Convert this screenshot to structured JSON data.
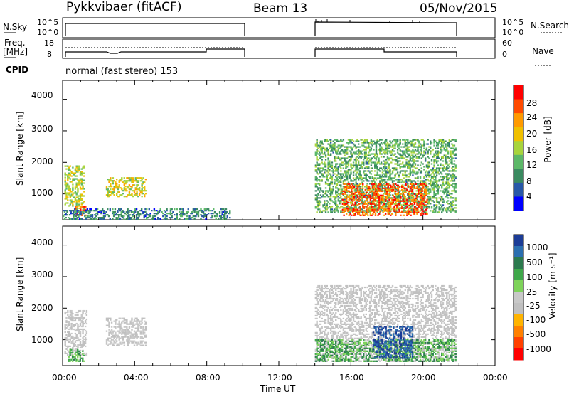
{
  "header": {
    "radar": "Pykkvibaer (fitACF)",
    "beam": "Beam 13",
    "date": "05/Nov/2015"
  },
  "strips": {
    "nsky_label": "N.Sky",
    "nsky_ticks": [
      "10^5",
      "10^0"
    ],
    "nsearch_label": "N.Search",
    "nsearch_ticks": [
      "10^5",
      "10^0"
    ],
    "freq_label": [
      "Freq.",
      "[MHz]"
    ],
    "freq_ticks": [
      "18",
      "8"
    ],
    "nave_label": "Nave",
    "nave_ticks": [
      "60",
      "0"
    ],
    "cpid_label": "CPID",
    "cpid_text": "normal (fast stereo) 153"
  },
  "axes": {
    "xlabel": "Time UT",
    "x_ticks": [
      "00:00",
      "04:00",
      "08:00",
      "12:00",
      "16:00",
      "20:00",
      "00:00"
    ],
    "ylabel": "Slant Range [km]",
    "y_ticks": [
      "4000",
      "3000",
      "2000",
      "1000"
    ]
  },
  "power_scale": {
    "label": "Power [dB]",
    "ticks": [
      "28",
      "24",
      "20",
      "16",
      "12",
      "8",
      "4"
    ],
    "colors": [
      "#ff0000",
      "#ff4a00",
      "#ff9a00",
      "#f0c000",
      "#a8d43c",
      "#5cb868",
      "#3a8a60",
      "#2858a8",
      "#0000ff"
    ]
  },
  "velocity_scale": {
    "label": "Velocity [m s⁻¹]",
    "ticks": [
      "1000",
      "500",
      "100",
      "25",
      "-25",
      "-100",
      "-500",
      "-1000"
    ],
    "colors": [
      "#1c3c96",
      "#2b6fb0",
      "#2c7a4e",
      "#3fa84a",
      "#7ed35a",
      "#c8c8c8",
      "#c0c0c0",
      "#ffb400",
      "#ff8000",
      "#ff4000",
      "#ff0000"
    ]
  },
  "chart_data": [
    {
      "type": "heatmap",
      "title": "Power",
      "xlabel": "Time UT",
      "ylabel": "Slant Range [km]",
      "x_range_hours": [
        0,
        24
      ],
      "ylim": [
        180,
        4600
      ],
      "colorbar": {
        "label": "Power [dB]",
        "ticks": [
          4,
          8,
          12,
          16,
          20,
          24,
          28
        ]
      },
      "regions": [
        {
          "t_start": 0.1,
          "t_end": 1.2,
          "range_lo": 600,
          "range_hi": 1900,
          "power_db": 16
        },
        {
          "t_start": 0.6,
          "t_end": 1.3,
          "range_lo": 300,
          "range_hi": 600,
          "power_db": 26
        },
        {
          "t_start": 2.4,
          "t_end": 4.6,
          "range_lo": 900,
          "range_hi": 1500,
          "power_db": 18
        },
        {
          "t_start": 0.0,
          "t_end": 9.3,
          "range_lo": 180,
          "range_hi": 500,
          "power_db": 8
        },
        {
          "t_start": 14.0,
          "t_end": 21.8,
          "range_lo": 400,
          "range_hi": 2700,
          "power_db": 12
        },
        {
          "t_start": 15.5,
          "t_end": 20.2,
          "range_lo": 300,
          "range_hi": 1300,
          "power_db": 26
        }
      ]
    },
    {
      "type": "heatmap",
      "title": "Velocity",
      "xlabel": "Time UT",
      "ylabel": "Slant Range [km]",
      "x_range_hours": [
        0,
        24
      ],
      "ylim": [
        180,
        4600
      ],
      "colorbar": {
        "label": "Velocity [m s⁻¹]",
        "ticks": [
          1000,
          500,
          100,
          25,
          -25,
          -100,
          -500,
          -1000
        ]
      },
      "regions": [
        {
          "t_start": 0.1,
          "t_end": 1.3,
          "range_lo": 500,
          "range_hi": 1900,
          "velocity": 0
        },
        {
          "t_start": 0.3,
          "t_end": 1.2,
          "range_lo": 300,
          "range_hi": 700,
          "velocity": 200
        },
        {
          "t_start": 2.4,
          "t_end": 4.6,
          "range_lo": 800,
          "range_hi": 1700,
          "velocity": 0
        },
        {
          "t_start": 14.0,
          "t_end": 21.8,
          "range_lo": 300,
          "range_hi": 2700,
          "velocity": 0
        },
        {
          "t_start": 14.0,
          "t_end": 21.8,
          "range_lo": 300,
          "range_hi": 1000,
          "velocity": 200
        },
        {
          "t_start": 17.2,
          "t_end": 19.4,
          "range_lo": 400,
          "range_hi": 1400,
          "velocity": 700
        }
      ]
    }
  ]
}
